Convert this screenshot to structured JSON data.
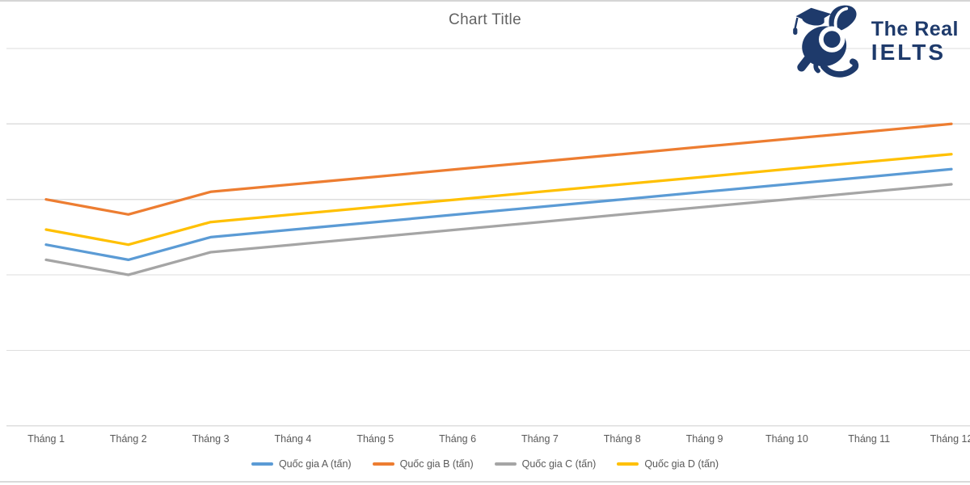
{
  "chart_data": {
    "type": "line",
    "title": "Chart Title",
    "categories": [
      "Tháng 1",
      "Tháng 2",
      "Tháng 3",
      "Tháng 4",
      "Tháng 5",
      "Tháng 6",
      "Tháng 7",
      "Tháng 8",
      "Tháng 9",
      "Tháng 10",
      "Tháng 11",
      "Tháng 12"
    ],
    "series": [
      {
        "name": "Quốc gia A (tấn)",
        "color": "#5B9BD5",
        "values": [
          24,
          22,
          25,
          26,
          27,
          28,
          29,
          30,
          31,
          32,
          33,
          34
        ]
      },
      {
        "name": "Quốc gia B (tấn)",
        "color": "#ED7D31",
        "values": [
          30,
          28,
          31,
          32,
          33,
          34,
          35,
          36,
          37,
          38,
          39,
          40
        ]
      },
      {
        "name": "Quốc gia C (tấn)",
        "color": "#A5A5A5",
        "values": [
          22,
          20,
          23,
          24,
          25,
          26,
          27,
          28,
          29,
          30,
          31,
          32
        ]
      },
      {
        "name": "Quốc gia D (tấn)",
        "color": "#FFC000",
        "values": [
          26,
          24,
          27,
          28,
          29,
          30,
          31,
          32,
          33,
          34,
          35,
          36
        ]
      }
    ],
    "ylim": [
      0,
      50
    ],
    "y_grid_step": 10,
    "y_tick_labels_visible": false,
    "grid": true,
    "legend_position": "bottom",
    "gridline_color": "#DEDEDE",
    "axis_text_color": "#595959",
    "title_color": "#636363"
  },
  "logo": {
    "line1": "The Real",
    "line2": "IELTS",
    "color": "#1e3a6b",
    "icon": "rabbit-graduation-cap-icon"
  }
}
